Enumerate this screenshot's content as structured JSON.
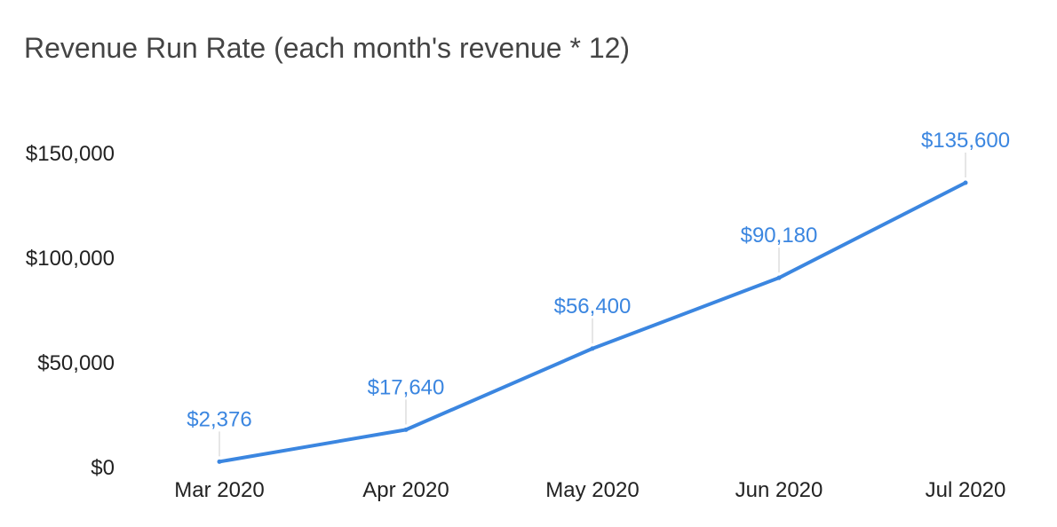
{
  "chart_data": {
    "type": "line",
    "title": "Revenue Run Rate (each month's revenue * 12)",
    "xlabel": "",
    "ylabel": "",
    "categories": [
      "Mar 2020",
      "Apr 2020",
      "May 2020",
      "Jun 2020",
      "Jul 2020"
    ],
    "series": [
      {
        "values": [
          2376,
          17640,
          56400,
          90180,
          135600
        ],
        "data_labels": [
          "$2,376",
          "$17,640",
          "$56,400",
          "$90,180",
          "$135,600"
        ],
        "color": "#3b86e0"
      }
    ],
    "yticks": [
      0,
      50000,
      100000,
      150000
    ],
    "ytick_labels": [
      "$0",
      "$50,000",
      "$100,000",
      "$150,000"
    ],
    "ylim": [
      0,
      150000
    ],
    "grid": false,
    "legend": "none"
  },
  "colors": {
    "line": "#3b86e0",
    "data_label": "#3b86e0",
    "tick_text": "#222222",
    "title_text": "#444444",
    "leader": "#cccccc"
  }
}
